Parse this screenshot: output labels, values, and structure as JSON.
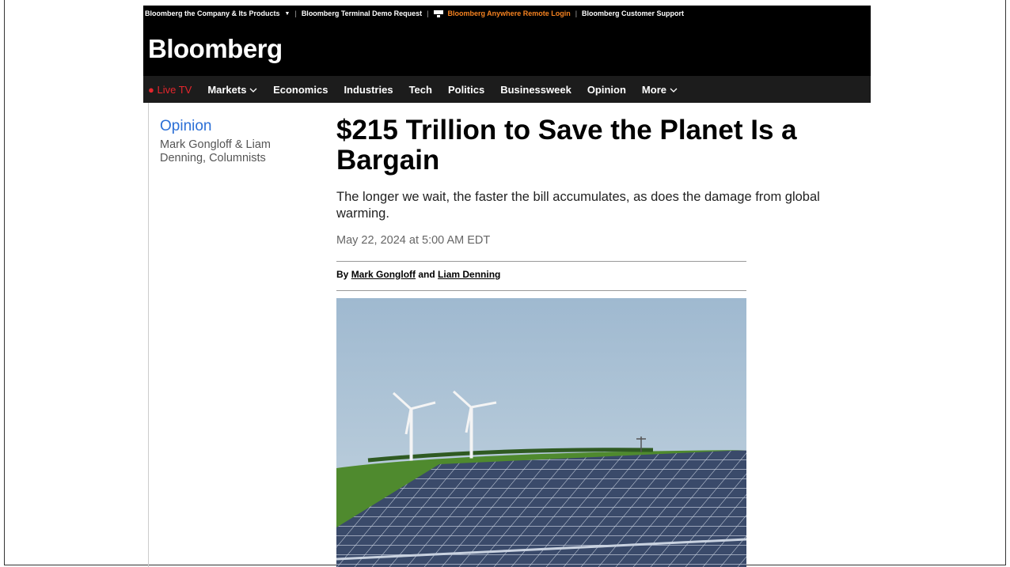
{
  "top_links": [
    "Bloomberg the Company & Its Products",
    "Bloomberg Terminal Demo Request",
    "Bloomberg Anywhere Remote Login",
    "Bloomberg Customer Support"
  ],
  "logo": "Bloomberg",
  "nav": [
    "Live TV",
    "Markets",
    "Economics",
    "Industries",
    "Tech",
    "Politics",
    "Businessweek",
    "Opinion",
    "More"
  ],
  "sidebar": {
    "section": "Opinion",
    "authors": "Mark Gongloff & Liam Denning, Columnists"
  },
  "article": {
    "headline": "$215 Trillion to Save the Planet Is a Bargain",
    "subheadline": "The longer we wait, the faster the bill accumulates, as does the damage from global warming.",
    "date": "May 22, 2024 at 5:00 AM EDT",
    "byline": {
      "prefix": "By",
      "author_1": "Mark Gongloff",
      "joiner": "and",
      "author_2": "Liam Denning"
    }
  }
}
